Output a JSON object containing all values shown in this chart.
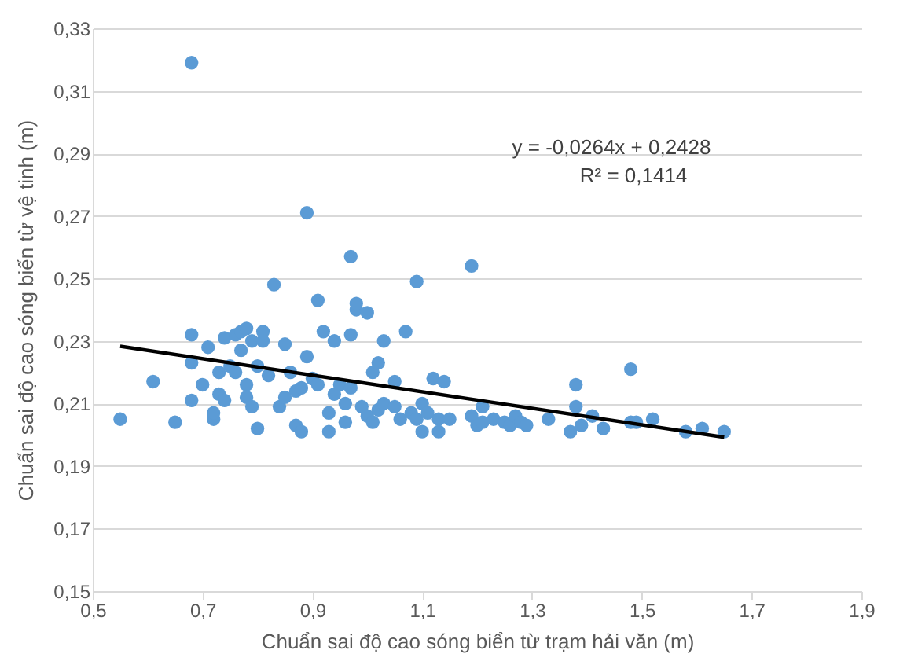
{
  "chart_data": {
    "type": "scatter",
    "xlabel": "Chuẩn sai độ cao sóng biển từ trạm hải văn (m)",
    "ylabel": "Chuẩn sai độ cao sóng biển từ vệ tinh (m)",
    "annotations": [
      "y = -0,0264x + 0,2428",
      "R² = 0,1414"
    ],
    "xlim": [
      0.5,
      1.9
    ],
    "xticks": [
      {
        "value": 0.5,
        "label": "0,5"
      },
      {
        "value": 0.7,
        "label": "0,7"
      },
      {
        "value": 0.9,
        "label": "0,9"
      },
      {
        "value": 1.1,
        "label": "1,1"
      },
      {
        "value": 1.3,
        "label": "1,3"
      },
      {
        "value": 1.5,
        "label": "1,5"
      },
      {
        "value": 1.7,
        "label": "1,7"
      },
      {
        "value": 1.9,
        "label": "1,9"
      }
    ],
    "ylim": [
      0.15,
      0.33
    ],
    "yticks": [
      {
        "value": 0.15,
        "label": "0,15"
      },
      {
        "value": 0.17,
        "label": "0,17"
      },
      {
        "value": 0.19,
        "label": "0,19"
      },
      {
        "value": 0.21,
        "label": "0,21"
      },
      {
        "value": 0.23,
        "label": "0,23"
      },
      {
        "value": 0.25,
        "label": "0,25"
      },
      {
        "value": 0.27,
        "label": "0,27"
      },
      {
        "value": 0.29,
        "label": "0,29"
      },
      {
        "value": 0.31,
        "label": "0,31"
      },
      {
        "value": 0.33,
        "label": "0,33"
      }
    ],
    "grid": "y",
    "marker": "circle",
    "series": [
      {
        "type": "scatter",
        "color": "#5b9bd5",
        "x": [
          0.55,
          0.61,
          0.65,
          0.68,
          0.68,
          0.68,
          0.68,
          0.7,
          0.71,
          0.72,
          0.72,
          0.73,
          0.73,
          0.74,
          0.74,
          0.75,
          0.76,
          0.76,
          0.77,
          0.77,
          0.78,
          0.78,
          0.78,
          0.79,
          0.79,
          0.8,
          0.8,
          0.81,
          0.81,
          0.82,
          0.83,
          0.84,
          0.85,
          0.85,
          0.86,
          0.87,
          0.87,
          0.88,
          0.88,
          0.89,
          0.89,
          0.9,
          0.91,
          0.91,
          0.92,
          0.93,
          0.93,
          0.94,
          0.94,
          0.95,
          0.96,
          0.96,
          0.97,
          0.97,
          0.97,
          0.98,
          0.98,
          0.99,
          1.0,
          1.0,
          1.01,
          1.01,
          1.02,
          1.02,
          1.03,
          1.03,
          1.05,
          1.05,
          1.06,
          1.07,
          1.08,
          1.09,
          1.09,
          1.1,
          1.1,
          1.11,
          1.12,
          1.13,
          1.13,
          1.14,
          1.15,
          1.19,
          1.19,
          1.2,
          1.21,
          1.21,
          1.23,
          1.25,
          1.26,
          1.27,
          1.28,
          1.29,
          1.33,
          1.37,
          1.38,
          1.38,
          1.39,
          1.41,
          1.43,
          1.48,
          1.48,
          1.49,
          1.52,
          1.58,
          1.61,
          1.65
        ],
        "values": [
          0.205,
          0.217,
          0.204,
          0.319,
          0.232,
          0.223,
          0.211,
          0.216,
          0.228,
          0.205,
          0.207,
          0.213,
          0.22,
          0.231,
          0.211,
          0.222,
          0.232,
          0.22,
          0.227,
          0.233,
          0.234,
          0.216,
          0.212,
          0.23,
          0.209,
          0.202,
          0.222,
          0.233,
          0.23,
          0.219,
          0.248,
          0.209,
          0.229,
          0.212,
          0.22,
          0.214,
          0.203,
          0.201,
          0.215,
          0.271,
          0.225,
          0.218,
          0.243,
          0.216,
          0.233,
          0.207,
          0.201,
          0.23,
          0.213,
          0.216,
          0.21,
          0.204,
          0.257,
          0.232,
          0.215,
          0.24,
          0.242,
          0.209,
          0.239,
          0.206,
          0.204,
          0.22,
          0.223,
          0.208,
          0.23,
          0.21,
          0.209,
          0.217,
          0.205,
          0.233,
          0.207,
          0.249,
          0.205,
          0.21,
          0.201,
          0.207,
          0.218,
          0.205,
          0.201,
          0.217,
          0.205,
          0.254,
          0.206,
          0.203,
          0.209,
          0.204,
          0.205,
          0.204,
          0.203,
          0.206,
          0.204,
          0.203,
          0.205,
          0.201,
          0.216,
          0.209,
          0.203,
          0.206,
          0.202,
          0.221,
          0.204,
          0.204,
          0.205,
          0.201,
          0.202,
          0.201
        ]
      },
      {
        "type": "line",
        "color": "#000000",
        "marker": "none",
        "x": [
          0.55,
          1.65
        ],
        "values": [
          0.2283,
          0.1992
        ]
      }
    ]
  }
}
